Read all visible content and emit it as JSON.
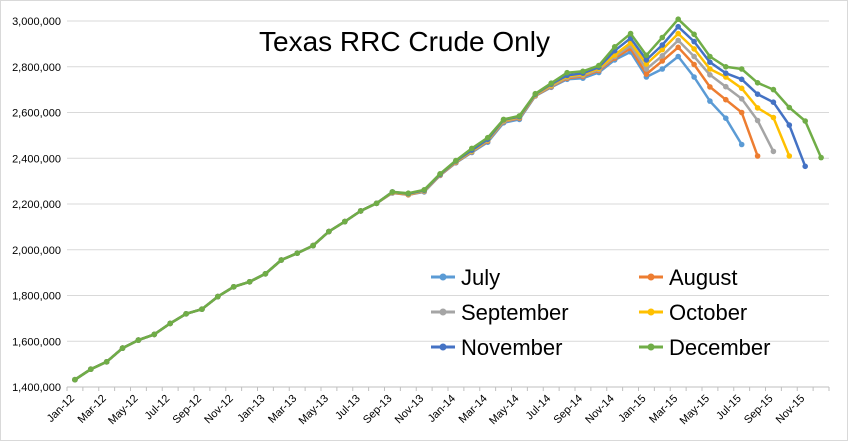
{
  "chart_data": {
    "type": "line",
    "title": "Texas RRC Crude Only",
    "xlabel": "",
    "ylabel": "",
    "ylim": [
      1400000,
      3000000
    ],
    "y_ticks": [
      1400000,
      1600000,
      1800000,
      2000000,
      2200000,
      2400000,
      2600000,
      2800000,
      3000000
    ],
    "y_tick_labels": [
      "1,400,000",
      "1,600,000",
      "1,800,000",
      "2,000,000",
      "2,200,000",
      "2,400,000",
      "2,600,000",
      "2,800,000",
      "3,000,000"
    ],
    "grid": true,
    "legend_position": "bottom-right",
    "x": [
      "Jan-12",
      "Feb-12",
      "Mar-12",
      "Apr-12",
      "May-12",
      "Jun-12",
      "Jul-12",
      "Aug-12",
      "Sep-12",
      "Oct-12",
      "Nov-12",
      "Dec-12",
      "Jan-13",
      "Feb-13",
      "Mar-13",
      "Apr-13",
      "May-13",
      "Jun-13",
      "Jul-13",
      "Aug-13",
      "Sep-13",
      "Oct-13",
      "Nov-13",
      "Dec-13",
      "Jan-14",
      "Feb-14",
      "Mar-14",
      "Apr-14",
      "May-14",
      "Jun-14",
      "Jul-14",
      "Aug-14",
      "Sep-14",
      "Oct-14",
      "Nov-14",
      "Dec-14",
      "Jan-15",
      "Feb-15",
      "Mar-15",
      "Apr-15",
      "May-15",
      "Jun-15",
      "Jul-15",
      "Aug-15",
      "Sep-15",
      "Oct-15",
      "Nov-15",
      "Dec-15"
    ],
    "x_tick_labels": [
      "Jan-12",
      "Mar-12",
      "May-12",
      "Jul-12",
      "Sep-12",
      "Nov-12",
      "Jan-13",
      "Mar-13",
      "May-13",
      "Jul-13",
      "Sep-13",
      "Nov-13",
      "Jan-14",
      "Mar-14",
      "May-14",
      "Jul-14",
      "Sep-14",
      "Nov-14",
      "Jan-15",
      "Mar-15",
      "May-15",
      "Jul-15",
      "Sep-15",
      "Nov-15"
    ],
    "series": [
      {
        "name": "July",
        "color": "#5B9BD5",
        "values": [
          1432000,
          1478000,
          1510000,
          1570000,
          1605000,
          1630000,
          1678000,
          1720000,
          1740000,
          1795000,
          1838000,
          1860000,
          1895000,
          1955000,
          1985000,
          2018000,
          2080000,
          2123000,
          2170000,
          2203000,
          2248000,
          2240000,
          2253000,
          2325000,
          2380000,
          2425000,
          2470000,
          2555000,
          2570000,
          2672000,
          2710000,
          2745000,
          2750000,
          2775000,
          2830000,
          2865000,
          2755000,
          2790000,
          2845000,
          2755000,
          2650000,
          2575000,
          2460000,
          null,
          null,
          null,
          null,
          null
        ]
      },
      {
        "name": "August",
        "color": "#ED7D31",
        "values": [
          1432000,
          1478000,
          1510000,
          1570000,
          1605000,
          1630000,
          1678000,
          1720000,
          1740000,
          1795000,
          1838000,
          1860000,
          1895000,
          1955000,
          1985000,
          2018000,
          2080000,
          2123000,
          2170000,
          2203000,
          2250000,
          2240000,
          2255000,
          2326000,
          2382000,
          2428000,
          2475000,
          2560000,
          2575000,
          2674000,
          2713000,
          2750000,
          2758000,
          2783000,
          2838000,
          2880000,
          2768000,
          2825000,
          2885000,
          2810000,
          2712000,
          2656000,
          2600000,
          2410000,
          null,
          null,
          null,
          null
        ]
      },
      {
        "name": "September",
        "color": "#A5A5A5",
        "values": [
          1432000,
          1478000,
          1510000,
          1570000,
          1605000,
          1630000,
          1678000,
          1720000,
          1740000,
          1795000,
          1838000,
          1860000,
          1895000,
          1955000,
          1985000,
          2018000,
          2080000,
          2123000,
          2170000,
          2203000,
          2252000,
          2242000,
          2256000,
          2328000,
          2384000,
          2430000,
          2478000,
          2562000,
          2578000,
          2676000,
          2716000,
          2754000,
          2762000,
          2788000,
          2845000,
          2892000,
          2790000,
          2848000,
          2915000,
          2845000,
          2765000,
          2713000,
          2660000,
          2565000,
          2430000,
          null,
          null,
          null
        ]
      },
      {
        "name": "October",
        "color": "#FFC000",
        "values": [
          1432000,
          1478000,
          1510000,
          1570000,
          1605000,
          1630000,
          1678000,
          1720000,
          1740000,
          1795000,
          1838000,
          1860000,
          1895000,
          1955000,
          1985000,
          2018000,
          2080000,
          2123000,
          2170000,
          2203000,
          2252000,
          2243000,
          2258000,
          2330000,
          2386000,
          2432000,
          2480000,
          2565000,
          2580000,
          2678000,
          2720000,
          2758000,
          2767000,
          2793000,
          2852000,
          2905000,
          2812000,
          2875000,
          2945000,
          2878000,
          2790000,
          2755000,
          2706000,
          2620000,
          2578000,
          2410000,
          null,
          null
        ]
      },
      {
        "name": "November",
        "color": "#4472C4",
        "values": [
          1432000,
          1478000,
          1510000,
          1570000,
          1605000,
          1630000,
          1678000,
          1720000,
          1740000,
          1795000,
          1838000,
          1860000,
          1895000,
          1955000,
          1985000,
          2018000,
          2080000,
          2123000,
          2170000,
          2203000,
          2253000,
          2245000,
          2260000,
          2330000,
          2388000,
          2435000,
          2483000,
          2568000,
          2582000,
          2680000,
          2724000,
          2762000,
          2772000,
          2798000,
          2870000,
          2925000,
          2830000,
          2895000,
          2975000,
          2910000,
          2820000,
          2772000,
          2745000,
          2680000,
          2645000,
          2545000,
          2365000,
          null
        ]
      },
      {
        "name": "December",
        "color": "#70AD47",
        "values": [
          1432000,
          1478000,
          1510000,
          1570000,
          1605000,
          1630000,
          1678000,
          1720000,
          1740000,
          1795000,
          1838000,
          1860000,
          1895000,
          1955000,
          1985000,
          2018000,
          2080000,
          2123000,
          2170000,
          2203000,
          2253000,
          2247000,
          2262000,
          2332000,
          2390000,
          2443000,
          2490000,
          2570000,
          2585000,
          2682000,
          2728000,
          2774000,
          2780000,
          2805000,
          2887000,
          2945000,
          2850000,
          2928000,
          3008000,
          2942000,
          2845000,
          2800000,
          2790000,
          2730000,
          2700000,
          2622000,
          2563000,
          2403000
        ]
      }
    ]
  }
}
